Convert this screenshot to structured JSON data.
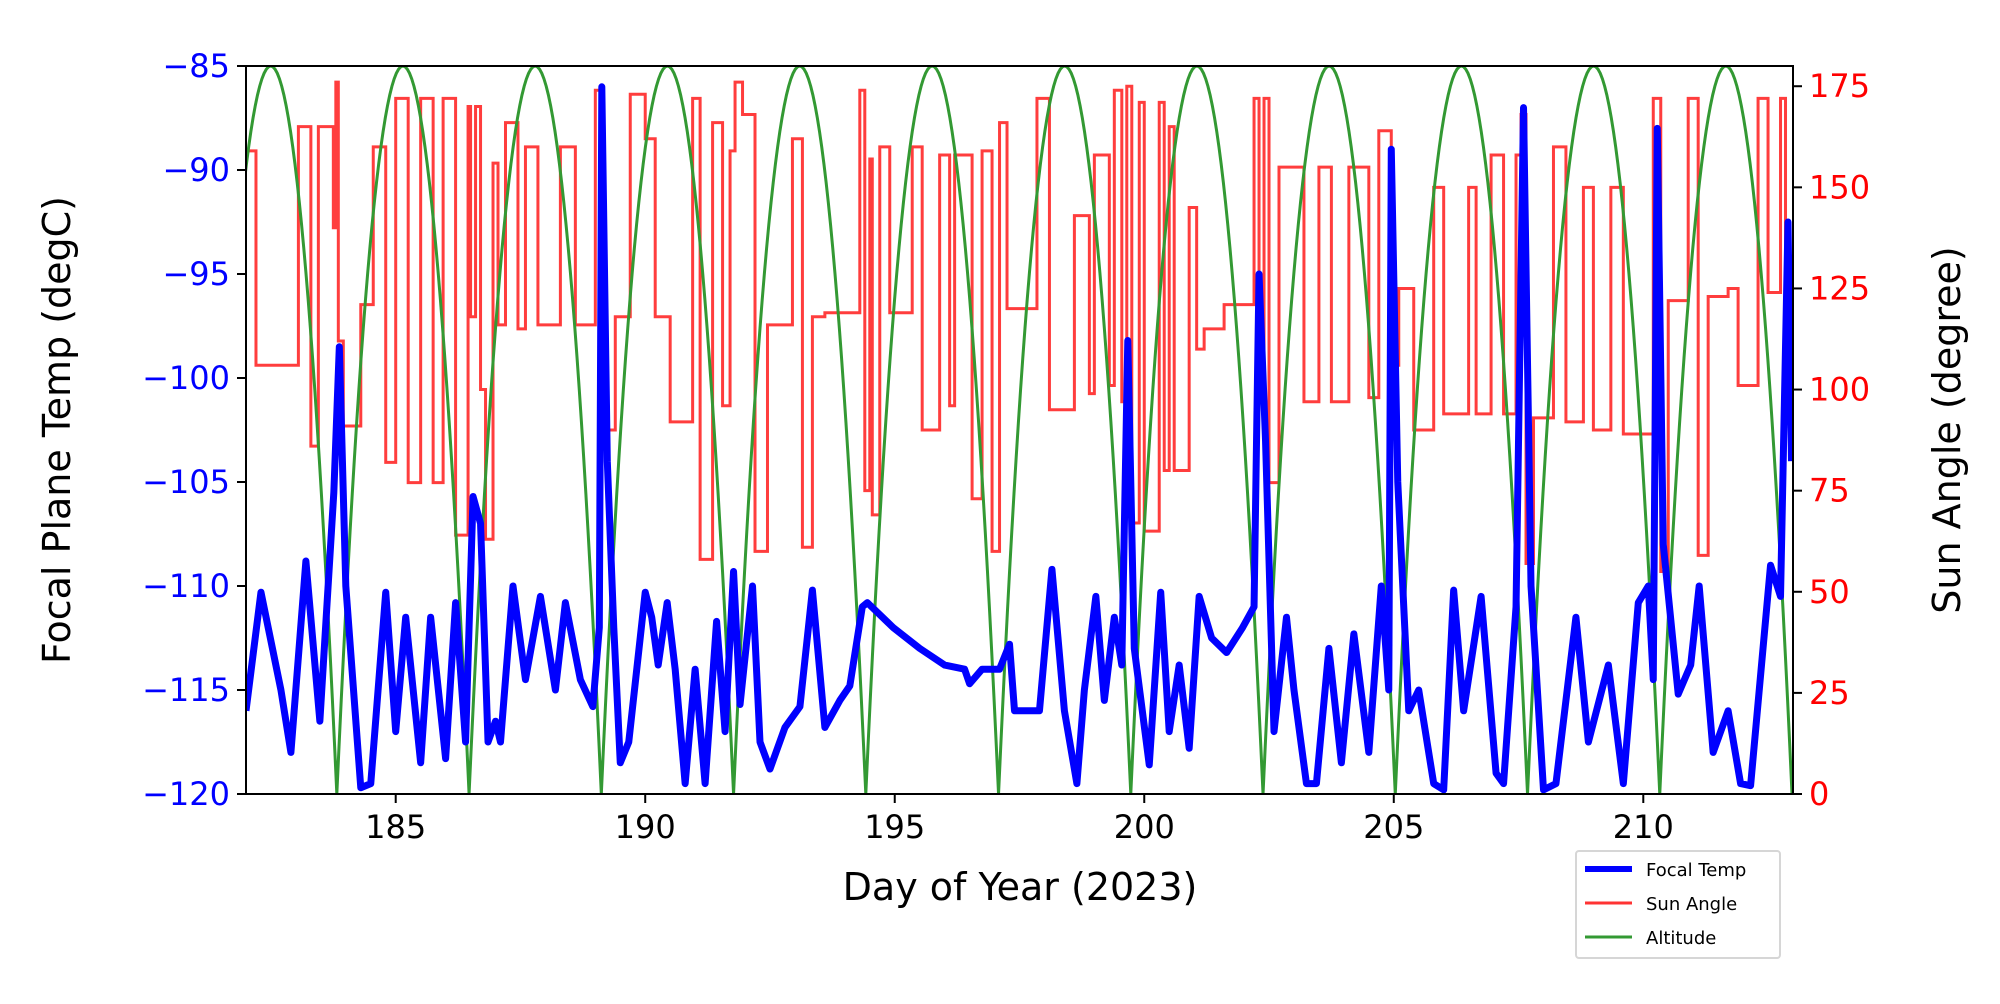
{
  "chart_data": {
    "type": "line",
    "xlabel": "Day of Year (2023)",
    "ylabel": "Focal Plane Temp (degC)",
    "ylabel_right": "Sun Angle (degree)",
    "xlim": [
      182,
      213
    ],
    "ylim": [
      -120,
      -85
    ],
    "ylim_right": [
      0,
      180
    ],
    "x_ticks": [
      185,
      190,
      195,
      200,
      205,
      210
    ],
    "y_ticks": [
      -120,
      -115,
      -110,
      -105,
      -100,
      -95,
      -90,
      -85
    ],
    "y_ticks_right": [
      0,
      25,
      50,
      75,
      100,
      125,
      150,
      175
    ],
    "grid": false,
    "legend_position": "bottom-right, below plot",
    "colors": {
      "focal": "#0000ff",
      "sun": "#ff3333",
      "altitude": "#339933",
      "left_axis": "#0000ff",
      "right_axis": "#ff0000"
    },
    "series": [
      {
        "name": "Focal Temp",
        "axis": "left",
        "points": [
          [
            182.0,
            -116
          ],
          [
            182.3,
            -110.3
          ],
          [
            182.7,
            -115
          ],
          [
            182.9,
            -118
          ],
          [
            183.2,
            -108.8
          ],
          [
            183.48,
            -116.5
          ],
          [
            183.76,
            -105.5
          ],
          [
            183.87,
            -98.5
          ],
          [
            184.0,
            -110
          ],
          [
            184.3,
            -119.7
          ],
          [
            184.5,
            -119.5
          ],
          [
            184.8,
            -110.3
          ],
          [
            185.0,
            -117
          ],
          [
            185.2,
            -111.5
          ],
          [
            185.5,
            -118.5
          ],
          [
            185.7,
            -111.5
          ],
          [
            186.0,
            -118.3
          ],
          [
            186.2,
            -110.8
          ],
          [
            186.4,
            -117.5
          ],
          [
            186.55,
            -105.7
          ],
          [
            186.7,
            -107
          ],
          [
            186.85,
            -117.5
          ],
          [
            187.0,
            -116.5
          ],
          [
            187.1,
            -117.5
          ],
          [
            187.35,
            -110
          ],
          [
            187.6,
            -114.5
          ],
          [
            187.9,
            -110.5
          ],
          [
            188.2,
            -115
          ],
          [
            188.4,
            -110.8
          ],
          [
            188.7,
            -114.5
          ],
          [
            188.95,
            -115.8
          ],
          [
            189.08,
            -112
          ],
          [
            189.13,
            -86
          ],
          [
            189.24,
            -104
          ],
          [
            189.37,
            -112
          ],
          [
            189.5,
            -118.5
          ],
          [
            189.67,
            -117.5
          ],
          [
            190.0,
            -110.3
          ],
          [
            190.13,
            -111.5
          ],
          [
            190.26,
            -113.8
          ],
          [
            190.44,
            -110.8
          ],
          [
            190.6,
            -114
          ],
          [
            190.8,
            -119.5
          ],
          [
            191.0,
            -114
          ],
          [
            191.2,
            -119.5
          ],
          [
            191.43,
            -111.7
          ],
          [
            191.6,
            -117
          ],
          [
            191.77,
            -109.3
          ],
          [
            191.9,
            -115.7
          ],
          [
            192.15,
            -110
          ],
          [
            192.3,
            -117.5
          ],
          [
            192.5,
            -118.8
          ],
          [
            192.8,
            -116.8
          ],
          [
            193.1,
            -115.8
          ],
          [
            193.35,
            -110.2
          ],
          [
            193.6,
            -116.8
          ],
          [
            193.9,
            -115.5
          ],
          [
            194.1,
            -114.8
          ],
          [
            194.35,
            -111
          ],
          [
            194.45,
            -110.8
          ],
          [
            194.97,
            -112
          ],
          [
            195.5,
            -113
          ],
          [
            196.0,
            -113.8
          ],
          [
            196.4,
            -114
          ],
          [
            196.5,
            -114.7
          ],
          [
            196.75,
            -114
          ],
          [
            197.1,
            -114
          ],
          [
            197.3,
            -112.8
          ],
          [
            197.4,
            -116
          ],
          [
            197.9,
            -116
          ],
          [
            198.15,
            -109.2
          ],
          [
            198.4,
            -116
          ],
          [
            198.65,
            -119.5
          ],
          [
            198.8,
            -115
          ],
          [
            199.03,
            -110.5
          ],
          [
            199.2,
            -115.5
          ],
          [
            199.4,
            -111.5
          ],
          [
            199.55,
            -113.8
          ],
          [
            199.67,
            -98.2
          ],
          [
            199.8,
            -113
          ],
          [
            200.1,
            -118.6
          ],
          [
            200.33,
            -110.3
          ],
          [
            200.5,
            -117
          ],
          [
            200.7,
            -113.8
          ],
          [
            200.9,
            -117.8
          ],
          [
            201.1,
            -110.5
          ],
          [
            201.35,
            -112.5
          ],
          [
            201.65,
            -113.2
          ],
          [
            201.97,
            -112
          ],
          [
            202.2,
            -111
          ],
          [
            202.3,
            -95
          ],
          [
            202.43,
            -103
          ],
          [
            202.6,
            -117
          ],
          [
            202.85,
            -111.5
          ],
          [
            203.0,
            -115
          ],
          [
            203.25,
            -119.5
          ],
          [
            203.45,
            -119.5
          ],
          [
            203.7,
            -113
          ],
          [
            203.95,
            -118.5
          ],
          [
            204.2,
            -112.3
          ],
          [
            204.5,
            -118
          ],
          [
            204.75,
            -110
          ],
          [
            204.9,
            -115
          ],
          [
            204.95,
            -89
          ],
          [
            205.08,
            -105
          ],
          [
            205.3,
            -116
          ],
          [
            205.5,
            -115
          ],
          [
            205.8,
            -119.5
          ],
          [
            206.0,
            -119.8
          ],
          [
            206.2,
            -110.2
          ],
          [
            206.4,
            -116
          ],
          [
            206.75,
            -110.5
          ],
          [
            207.05,
            -119
          ],
          [
            207.2,
            -119.5
          ],
          [
            207.45,
            -111
          ],
          [
            207.6,
            -87
          ],
          [
            207.75,
            -110
          ],
          [
            208.0,
            -119.8
          ],
          [
            208.25,
            -119.5
          ],
          [
            208.65,
            -111.5
          ],
          [
            208.9,
            -117.5
          ],
          [
            209.3,
            -113.8
          ],
          [
            209.6,
            -119.5
          ],
          [
            209.9,
            -110.8
          ],
          [
            210.1,
            -110
          ],
          [
            210.2,
            -114.5
          ],
          [
            210.28,
            -88
          ],
          [
            210.4,
            -108
          ],
          [
            210.7,
            -115.2
          ],
          [
            210.95,
            -113.8
          ],
          [
            211.12,
            -110
          ],
          [
            211.4,
            -118
          ],
          [
            211.7,
            -116
          ],
          [
            211.95,
            -119.5
          ],
          [
            212.15,
            -119.6
          ],
          [
            212.55,
            -109
          ],
          [
            212.75,
            -110.5
          ],
          [
            212.9,
            -92.5
          ],
          [
            212.97,
            -104
          ]
        ]
      },
      {
        "name": "Sun Angle",
        "axis": "right",
        "steps": [
          [
            182.0,
            159
          ],
          [
            182.2,
            106
          ],
          [
            183.05,
            165
          ],
          [
            183.3,
            86
          ],
          [
            183.45,
            165
          ],
          [
            183.75,
            140
          ],
          [
            183.8,
            176
          ],
          [
            183.85,
            112
          ],
          [
            183.95,
            91
          ],
          [
            184.3,
            121
          ],
          [
            184.55,
            160
          ],
          [
            184.8,
            82
          ],
          [
            185.0,
            172
          ],
          [
            185.25,
            77
          ],
          [
            185.5,
            172
          ],
          [
            185.75,
            77
          ],
          [
            185.95,
            172
          ],
          [
            186.2,
            64
          ],
          [
            186.45,
            170
          ],
          [
            186.5,
            118
          ],
          [
            186.6,
            170
          ],
          [
            186.7,
            100
          ],
          [
            186.8,
            63
          ],
          [
            186.95,
            156
          ],
          [
            187.05,
            116
          ],
          [
            187.2,
            166
          ],
          [
            187.45,
            115
          ],
          [
            187.6,
            160
          ],
          [
            187.85,
            116
          ],
          [
            188.3,
            160
          ],
          [
            188.6,
            116
          ],
          [
            189.0,
            174
          ],
          [
            189.1,
            101
          ],
          [
            189.2,
            90
          ],
          [
            189.4,
            118
          ],
          [
            189.7,
            173
          ],
          [
            190.0,
            162
          ],
          [
            190.2,
            118
          ],
          [
            190.5,
            92
          ],
          [
            190.95,
            172
          ],
          [
            191.1,
            58
          ],
          [
            191.35,
            166
          ],
          [
            191.55,
            96
          ],
          [
            191.7,
            159
          ],
          [
            191.8,
            176
          ],
          [
            191.95,
            168
          ],
          [
            192.2,
            60
          ],
          [
            192.45,
            116
          ],
          [
            192.95,
            162
          ],
          [
            193.15,
            61
          ],
          [
            193.35,
            118
          ],
          [
            193.6,
            119
          ],
          [
            194.3,
            174
          ],
          [
            194.4,
            75
          ],
          [
            194.5,
            157
          ],
          [
            194.55,
            69
          ],
          [
            194.7,
            160
          ],
          [
            194.9,
            119
          ],
          [
            195.35,
            160
          ],
          [
            195.55,
            90
          ],
          [
            195.9,
            158
          ],
          [
            196.1,
            96
          ],
          [
            196.2,
            158
          ],
          [
            196.55,
            73
          ],
          [
            196.75,
            159
          ],
          [
            196.95,
            60
          ],
          [
            197.1,
            166
          ],
          [
            197.25,
            120
          ],
          [
            197.8,
            120
          ],
          [
            197.85,
            172
          ],
          [
            198.1,
            95
          ],
          [
            198.6,
            143
          ],
          [
            198.9,
            99
          ],
          [
            199.0,
            158
          ],
          [
            199.3,
            101
          ],
          [
            199.4,
            174
          ],
          [
            199.55,
            97
          ],
          [
            199.65,
            175
          ],
          [
            199.75,
            67
          ],
          [
            199.9,
            171
          ],
          [
            200.0,
            65
          ],
          [
            200.3,
            171
          ],
          [
            200.4,
            80
          ],
          [
            200.5,
            165
          ],
          [
            200.6,
            80
          ],
          [
            200.9,
            145
          ],
          [
            201.05,
            110
          ],
          [
            201.2,
            115
          ],
          [
            201.6,
            121
          ],
          [
            202.2,
            172
          ],
          [
            202.3,
            106
          ],
          [
            202.4,
            172
          ],
          [
            202.5,
            77
          ],
          [
            202.7,
            155
          ],
          [
            203.2,
            97
          ],
          [
            203.5,
            155
          ],
          [
            203.75,
            97
          ],
          [
            204.1,
            155
          ],
          [
            204.5,
            98
          ],
          [
            204.7,
            164
          ],
          [
            204.95,
            106
          ],
          [
            205.1,
            125
          ],
          [
            205.4,
            90
          ],
          [
            205.75,
            90
          ],
          [
            205.8,
            150
          ],
          [
            206.0,
            94
          ],
          [
            206.5,
            150
          ],
          [
            206.65,
            94
          ],
          [
            206.95,
            158
          ],
          [
            207.2,
            94
          ],
          [
            207.45,
            158
          ],
          [
            207.55,
            168
          ],
          [
            207.65,
            57
          ],
          [
            207.8,
            93
          ],
          [
            208.2,
            160
          ],
          [
            208.45,
            92
          ],
          [
            208.8,
            150
          ],
          [
            209.0,
            90
          ],
          [
            209.35,
            150
          ],
          [
            209.6,
            89
          ],
          [
            210.2,
            172
          ],
          [
            210.35,
            55
          ],
          [
            210.5,
            122
          ],
          [
            210.9,
            172
          ],
          [
            211.1,
            59
          ],
          [
            211.3,
            123
          ],
          [
            211.7,
            125
          ],
          [
            211.9,
            101
          ],
          [
            212.3,
            172
          ],
          [
            212.5,
            124
          ],
          [
            212.75,
            172
          ],
          [
            212.85,
            95
          ]
        ]
      },
      {
        "name": "Altitude",
        "axis": "right",
        "perigees": [
          183.82,
          186.47,
          189.12,
          191.77,
          194.42,
          197.08,
          199.73,
          202.38,
          205.03,
          207.68,
          210.33,
          212.98
        ],
        "apogee_value": 180
      }
    ]
  },
  "legend": {
    "items": [
      "Focal Temp",
      "Sun Angle",
      "Altitude"
    ]
  }
}
